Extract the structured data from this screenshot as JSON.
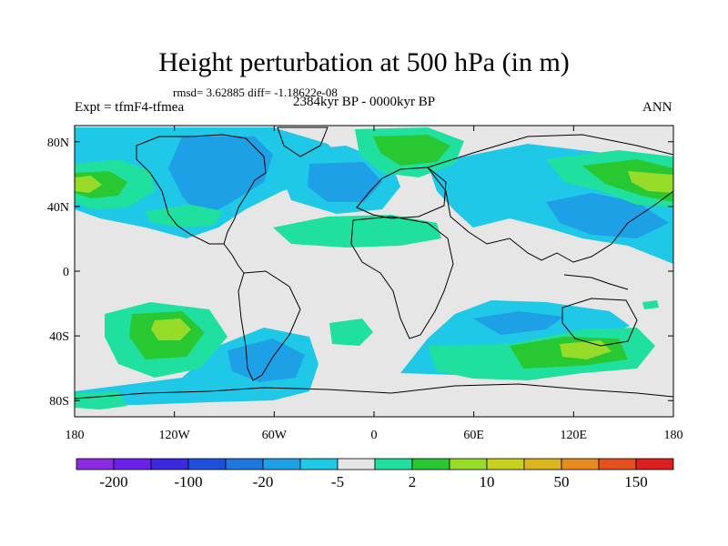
{
  "header": {
    "title": "Height perturbation at 500 hPa (in m)",
    "stats": "rmsd= 3.62885 diff= -1.18622e-08",
    "experiment": "Expt = tfmF4-tfmea",
    "period": "2384kyr BP - 0000kyr BP",
    "season": "ANN"
  },
  "axes": {
    "lat_ticks": [
      {
        "value": 80,
        "label": "80N"
      },
      {
        "value": 40,
        "label": "40N"
      },
      {
        "value": 0,
        "label": "0"
      },
      {
        "value": -40,
        "label": "40S"
      },
      {
        "value": -80,
        "label": "80S"
      }
    ],
    "lon_ticks": [
      {
        "value": -180,
        "label": "180"
      },
      {
        "value": -120,
        "label": "120W"
      },
      {
        "value": -60,
        "label": "60W"
      },
      {
        "value": 0,
        "label": "0"
      },
      {
        "value": 60,
        "label": "60E"
      },
      {
        "value": 120,
        "label": "120E"
      },
      {
        "value": 180,
        "label": "180"
      }
    ]
  },
  "colorbar": {
    "colors": [
      "#8a2be2",
      "#6a22e8",
      "#3c28e0",
      "#1e50dc",
      "#1e78e0",
      "#1ea0e6",
      "#1ec8e6",
      "#e6e6e6",
      "#20e0a0",
      "#28c832",
      "#96dc28",
      "#c8d21e",
      "#dcb41e",
      "#e68c1e",
      "#e6501e",
      "#dc1e1e"
    ],
    "labels": [
      "-200",
      "-100",
      "-20",
      "-5",
      "2",
      "10",
      "50",
      "150"
    ]
  },
  "fields": {
    "colors": {
      "neutral": "#e6e6e6",
      "neg1": "#1ec8e6",
      "neg2": "#1ea0e6",
      "pos1": "#20e0a0",
      "pos2": "#28c832",
      "pos3": "#96dc28",
      "pos4": "#c8d21e"
    }
  }
}
